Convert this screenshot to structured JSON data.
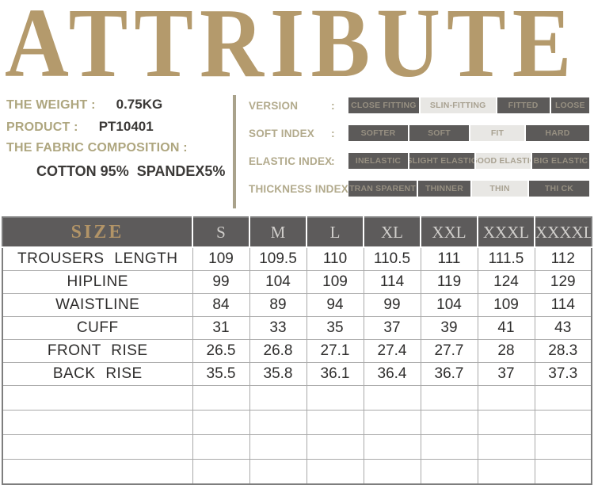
{
  "title": "ATTRIBUTE",
  "colors": {
    "title_tan": "#b49a6c",
    "label_khaki": "#aea67f",
    "dark_text": "#3b3937",
    "segment_dark_bg": "#5c5a59",
    "segment_light_bg": "#e8e7e4",
    "table_header_bg": "#5d5b5b",
    "size_label_tan": "#b29467"
  },
  "product_info": {
    "weight_label": "THE WEIGHT :",
    "weight_value": "0.75KG",
    "product_label": "PRODUCT :",
    "product_value": "PT10401",
    "fabric_label": "THE FABRIC COMPOSITION :",
    "fabric_value": "COTTON 95%  SPANDEX5%"
  },
  "attributes": [
    {
      "label": "VERSION",
      "colon": ":",
      "segments": [
        {
          "label": "CLOSE FITTING",
          "highlighted": false
        },
        {
          "label": "SLIN-FITTING",
          "highlighted": true
        },
        {
          "label": "FITTED",
          "highlighted": false
        },
        {
          "label": "LOOSE",
          "highlighted": false
        }
      ]
    },
    {
      "label": "SOFT INDEX",
      "colon": ":",
      "segments": [
        {
          "label": "SOFTER",
          "highlighted": false
        },
        {
          "label": "SOFT",
          "highlighted": false
        },
        {
          "label": "FIT",
          "highlighted": true
        },
        {
          "label": "HARD",
          "highlighted": false
        }
      ]
    },
    {
      "label": "ELASTIC INDEX",
      "colon": ":",
      "segments": [
        {
          "label": "INELASTIC",
          "highlighted": false
        },
        {
          "label": "SLIGHT ELASTIC",
          "highlighted": false
        },
        {
          "label": "GOOD ELASTIC",
          "highlighted": true
        },
        {
          "label": "BIG ELASTIC",
          "highlighted": false
        }
      ]
    },
    {
      "label": "THICKNESS INDEX:",
      "colon": "",
      "segments": [
        {
          "label": "TRAN SPARENT",
          "highlighted": false
        },
        {
          "label": "THINNER",
          "highlighted": false
        },
        {
          "label": "THIN",
          "highlighted": true
        },
        {
          "label": "THI CK",
          "highlighted": false
        }
      ]
    }
  ],
  "size_table": {
    "header_label": "SIZE",
    "columns": [
      "S",
      "M",
      "L",
      "XL",
      "XXL",
      "XXXL",
      "XXXXL"
    ],
    "rows": [
      {
        "label": "TROUSERS LENGTH",
        "values": [
          "109",
          "109.5",
          "110",
          "110.5",
          "111",
          "111.5",
          "112"
        ]
      },
      {
        "label": "HIPLINE",
        "values": [
          "99",
          "104",
          "109",
          "114",
          "119",
          "124",
          "129"
        ]
      },
      {
        "label": "WAISTLINE",
        "values": [
          "84",
          "89",
          "94",
          "99",
          "104",
          "109",
          "114"
        ]
      },
      {
        "label": "CUFF",
        "values": [
          "31",
          "33",
          "35",
          "37",
          "39",
          "41",
          "43"
        ]
      },
      {
        "label": "FRONT RISE",
        "values": [
          "26.5",
          "26.8",
          "27.1",
          "27.4",
          "27.7",
          "28",
          "28.3"
        ]
      },
      {
        "label": "BACK RISE",
        "values": [
          "35.5",
          "35.8",
          "36.1",
          "36.4",
          "36.7",
          "37",
          "37.3"
        ]
      }
    ],
    "empty_row_count": 4
  }
}
